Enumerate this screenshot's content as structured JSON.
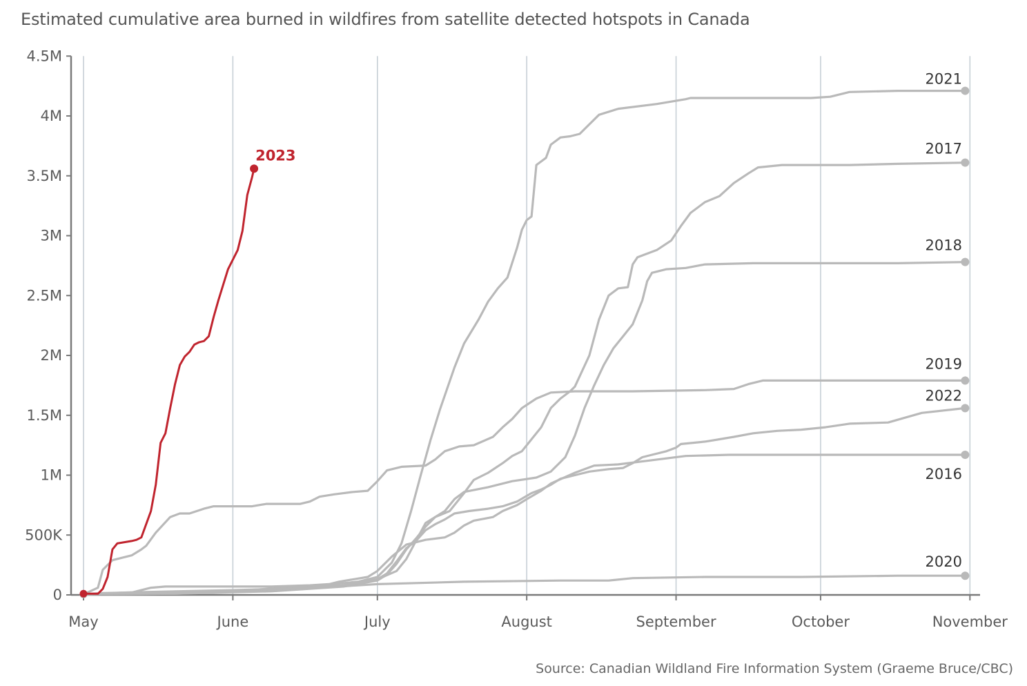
{
  "title": "Estimated cumulative area burned in wildfires from satellite detected hotspots in Canada",
  "source": "Source: Canadian Wildland Fire Information System (Graeme Bruce/CBC)",
  "colors": {
    "highlight": "#c0242e",
    "series": "#b9b9b9",
    "grid": "#c3ccd3",
    "axis": "#7a7a7a",
    "text": "#555555"
  },
  "chart_data": {
    "type": "line",
    "x_unit": "day of year (1 = May 1)",
    "xlim": [
      1,
      184
    ],
    "ylim": [
      0,
      4500000
    ],
    "y_ticks": [
      0,
      500000,
      1000000,
      1500000,
      2000000,
      2500000,
      3000000,
      3500000,
      4000000,
      4500000
    ],
    "y_tick_labels": [
      "0",
      "500K",
      "1M",
      "1.5M",
      "2M",
      "2.5M",
      "3M",
      "3.5M",
      "4M",
      "4.5M"
    ],
    "x_ticks": [
      1,
      32,
      62,
      93,
      124,
      154,
      185
    ],
    "x_tick_labels": [
      "May",
      "June",
      "July",
      "August",
      "September",
      "October",
      "November"
    ],
    "grid": "vertical",
    "series": [
      {
        "name": "2023",
        "highlight": true,
        "points": [
          [
            1,
            10000
          ],
          [
            4,
            10000
          ],
          [
            5,
            50000
          ],
          [
            6,
            150000
          ],
          [
            7,
            380000
          ],
          [
            8,
            430000
          ],
          [
            11,
            450000
          ],
          [
            12,
            460000
          ],
          [
            13,
            480000
          ],
          [
            15,
            700000
          ],
          [
            16,
            920000
          ],
          [
            17,
            1270000
          ],
          [
            18,
            1350000
          ],
          [
            19,
            1560000
          ],
          [
            20,
            1760000
          ],
          [
            21,
            1920000
          ],
          [
            22,
            1990000
          ],
          [
            23,
            2030000
          ],
          [
            24,
            2090000
          ],
          [
            25,
            2110000
          ],
          [
            26,
            2120000
          ],
          [
            27,
            2160000
          ],
          [
            28,
            2320000
          ],
          [
            29,
            2460000
          ],
          [
            30,
            2590000
          ],
          [
            31,
            2720000
          ],
          [
            33,
            2880000
          ],
          [
            34,
            3040000
          ],
          [
            35,
            3340000
          ],
          [
            36,
            3490000
          ],
          [
            36.4,
            3560000
          ]
        ]
      },
      {
        "name": "2021",
        "highlight": false,
        "points": [
          [
            1,
            5000
          ],
          [
            10,
            10000
          ],
          [
            18,
            15000
          ],
          [
            31,
            30000
          ],
          [
            43,
            60000
          ],
          [
            50,
            80000
          ],
          [
            58,
            110000
          ],
          [
            62,
            150000
          ],
          [
            65,
            270000
          ],
          [
            67,
            430000
          ],
          [
            69,
            700000
          ],
          [
            71,
            1000000
          ],
          [
            73,
            1290000
          ],
          [
            75,
            1550000
          ],
          [
            78,
            1900000
          ],
          [
            80,
            2100000
          ],
          [
            83,
            2300000
          ],
          [
            85,
            2450000
          ],
          [
            87,
            2560000
          ],
          [
            89,
            2650000
          ],
          [
            91,
            2900000
          ],
          [
            92,
            3050000
          ],
          [
            93,
            3130000
          ],
          [
            94,
            3160000
          ],
          [
            95,
            3590000
          ],
          [
            97,
            3650000
          ],
          [
            98,
            3760000
          ],
          [
            100,
            3820000
          ],
          [
            102,
            3830000
          ],
          [
            104,
            3850000
          ],
          [
            106,
            3930000
          ],
          [
            108,
            4010000
          ],
          [
            112,
            4060000
          ],
          [
            120,
            4100000
          ],
          [
            126,
            4140000
          ],
          [
            127,
            4150000
          ],
          [
            140,
            4150000
          ],
          [
            152,
            4150000
          ],
          [
            156,
            4160000
          ],
          [
            160,
            4200000
          ],
          [
            170,
            4210000
          ],
          [
            184,
            4210000
          ]
        ]
      },
      {
        "name": "2017",
        "highlight": false,
        "points": [
          [
            1,
            5000
          ],
          [
            20,
            10000
          ],
          [
            40,
            40000
          ],
          [
            55,
            80000
          ],
          [
            62,
            130000
          ],
          [
            66,
            200000
          ],
          [
            68,
            300000
          ],
          [
            70,
            450000
          ],
          [
            72,
            600000
          ],
          [
            74,
            650000
          ],
          [
            77,
            700000
          ],
          [
            80,
            850000
          ],
          [
            82,
            960000
          ],
          [
            85,
            1020000
          ],
          [
            88,
            1100000
          ],
          [
            90,
            1160000
          ],
          [
            92,
            1200000
          ],
          [
            94,
            1300000
          ],
          [
            96,
            1400000
          ],
          [
            98,
            1560000
          ],
          [
            100,
            1640000
          ],
          [
            102,
            1700000
          ],
          [
            103,
            1740000
          ],
          [
            106,
            2000000
          ],
          [
            108,
            2300000
          ],
          [
            110,
            2500000
          ],
          [
            112,
            2560000
          ],
          [
            114,
            2570000
          ],
          [
            115,
            2760000
          ],
          [
            116,
            2820000
          ],
          [
            120,
            2880000
          ],
          [
            123,
            2960000
          ],
          [
            125,
            3080000
          ],
          [
            127,
            3190000
          ],
          [
            130,
            3280000
          ],
          [
            133,
            3330000
          ],
          [
            136,
            3440000
          ],
          [
            139,
            3520000
          ],
          [
            141,
            3570000
          ],
          [
            146,
            3590000
          ],
          [
            160,
            3590000
          ],
          [
            170,
            3600000
          ],
          [
            184,
            3610000
          ]
        ]
      },
      {
        "name": "2018",
        "highlight": false,
        "points": [
          [
            1,
            5000
          ],
          [
            20,
            10000
          ],
          [
            40,
            30000
          ],
          [
            55,
            70000
          ],
          [
            62,
            120000
          ],
          [
            64,
            170000
          ],
          [
            66,
            260000
          ],
          [
            68,
            380000
          ],
          [
            70,
            470000
          ],
          [
            72,
            570000
          ],
          [
            74,
            650000
          ],
          [
            76,
            700000
          ],
          [
            78,
            800000
          ],
          [
            80,
            860000
          ],
          [
            85,
            900000
          ],
          [
            90,
            950000
          ],
          [
            95,
            980000
          ],
          [
            98,
            1030000
          ],
          [
            101,
            1150000
          ],
          [
            103,
            1330000
          ],
          [
            105,
            1560000
          ],
          [
            107,
            1750000
          ],
          [
            109,
            1920000
          ],
          [
            111,
            2060000
          ],
          [
            113,
            2160000
          ],
          [
            115,
            2260000
          ],
          [
            117,
            2460000
          ],
          [
            118,
            2620000
          ],
          [
            119,
            2690000
          ],
          [
            122,
            2720000
          ],
          [
            126,
            2730000
          ],
          [
            130,
            2760000
          ],
          [
            140,
            2770000
          ],
          [
            160,
            2770000
          ],
          [
            170,
            2770000
          ],
          [
            184,
            2780000
          ]
        ]
      },
      {
        "name": "2019",
        "highlight": false,
        "points": [
          [
            1,
            5000
          ],
          [
            4,
            60000
          ],
          [
            5,
            210000
          ],
          [
            7,
            290000
          ],
          [
            9,
            310000
          ],
          [
            11,
            330000
          ],
          [
            13,
            380000
          ],
          [
            14,
            410000
          ],
          [
            16,
            520000
          ],
          [
            19,
            650000
          ],
          [
            21,
            680000
          ],
          [
            23,
            680000
          ],
          [
            26,
            720000
          ],
          [
            28,
            740000
          ],
          [
            31,
            740000
          ],
          [
            36,
            740000
          ],
          [
            39,
            760000
          ],
          [
            46,
            760000
          ],
          [
            48,
            780000
          ],
          [
            50,
            820000
          ],
          [
            53,
            840000
          ],
          [
            57,
            860000
          ],
          [
            60,
            870000
          ],
          [
            62,
            950000
          ],
          [
            64,
            1040000
          ],
          [
            67,
            1070000
          ],
          [
            72,
            1080000
          ],
          [
            74,
            1130000
          ],
          [
            76,
            1200000
          ],
          [
            79,
            1240000
          ],
          [
            82,
            1250000
          ],
          [
            86,
            1320000
          ],
          [
            88,
            1400000
          ],
          [
            90,
            1470000
          ],
          [
            92,
            1560000
          ],
          [
            95,
            1640000
          ],
          [
            98,
            1690000
          ],
          [
            103,
            1700000
          ],
          [
            115,
            1700000
          ],
          [
            130,
            1710000
          ],
          [
            136,
            1720000
          ],
          [
            139,
            1760000
          ],
          [
            142,
            1790000
          ],
          [
            165,
            1790000
          ],
          [
            184,
            1790000
          ]
        ]
      },
      {
        "name": "2022",
        "highlight": false,
        "points": [
          [
            1,
            5000
          ],
          [
            20,
            15000
          ],
          [
            40,
            40000
          ],
          [
            55,
            80000
          ],
          [
            62,
            130000
          ],
          [
            64,
            180000
          ],
          [
            66,
            280000
          ],
          [
            68,
            390000
          ],
          [
            70,
            450000
          ],
          [
            72,
            540000
          ],
          [
            74,
            590000
          ],
          [
            76,
            630000
          ],
          [
            78,
            680000
          ],
          [
            81,
            700000
          ],
          [
            85,
            720000
          ],
          [
            88,
            740000
          ],
          [
            91,
            780000
          ],
          [
            94,
            850000
          ],
          [
            96,
            880000
          ],
          [
            98,
            920000
          ],
          [
            100,
            970000
          ],
          [
            103,
            1000000
          ],
          [
            106,
            1030000
          ],
          [
            110,
            1050000
          ],
          [
            113,
            1060000
          ],
          [
            115,
            1100000
          ],
          [
            117,
            1150000
          ],
          [
            119,
            1170000
          ],
          [
            122,
            1200000
          ],
          [
            124,
            1230000
          ],
          [
            125,
            1260000
          ],
          [
            130,
            1280000
          ],
          [
            133,
            1300000
          ],
          [
            136,
            1320000
          ],
          [
            140,
            1350000
          ],
          [
            145,
            1370000
          ],
          [
            150,
            1380000
          ],
          [
            155,
            1400000
          ],
          [
            160,
            1430000
          ],
          [
            168,
            1440000
          ],
          [
            175,
            1520000
          ],
          [
            184,
            1560000
          ]
        ]
      },
      {
        "name": "2016",
        "highlight": false,
        "points": [
          [
            1,
            5000
          ],
          [
            5,
            15000
          ],
          [
            11,
            20000
          ],
          [
            13,
            40000
          ],
          [
            15,
            60000
          ],
          [
            18,
            70000
          ],
          [
            25,
            70000
          ],
          [
            32,
            70000
          ],
          [
            40,
            70000
          ],
          [
            48,
            80000
          ],
          [
            52,
            90000
          ],
          [
            54,
            110000
          ],
          [
            60,
            150000
          ],
          [
            62,
            200000
          ],
          [
            65,
            320000
          ],
          [
            68,
            420000
          ],
          [
            70,
            440000
          ],
          [
            72,
            460000
          ],
          [
            76,
            480000
          ],
          [
            78,
            520000
          ],
          [
            80,
            580000
          ],
          [
            82,
            620000
          ],
          [
            86,
            650000
          ],
          [
            88,
            700000
          ],
          [
            91,
            750000
          ],
          [
            93,
            800000
          ],
          [
            96,
            870000
          ],
          [
            98,
            930000
          ],
          [
            103,
            1020000
          ],
          [
            107,
            1080000
          ],
          [
            112,
            1090000
          ],
          [
            118,
            1120000
          ],
          [
            122,
            1140000
          ],
          [
            126,
            1160000
          ],
          [
            135,
            1170000
          ],
          [
            145,
            1170000
          ],
          [
            160,
            1170000
          ],
          [
            184,
            1170000
          ]
        ]
      },
      {
        "name": "2020",
        "highlight": false,
        "points": [
          [
            1,
            5000
          ],
          [
            10,
            20000
          ],
          [
            20,
            30000
          ],
          [
            32,
            40000
          ],
          [
            50,
            60000
          ],
          [
            62,
            90000
          ],
          [
            80,
            110000
          ],
          [
            100,
            120000
          ],
          [
            110,
            120000
          ],
          [
            115,
            140000
          ],
          [
            130,
            150000
          ],
          [
            150,
            150000
          ],
          [
            170,
            160000
          ],
          [
            184,
            160000
          ]
        ]
      }
    ]
  }
}
